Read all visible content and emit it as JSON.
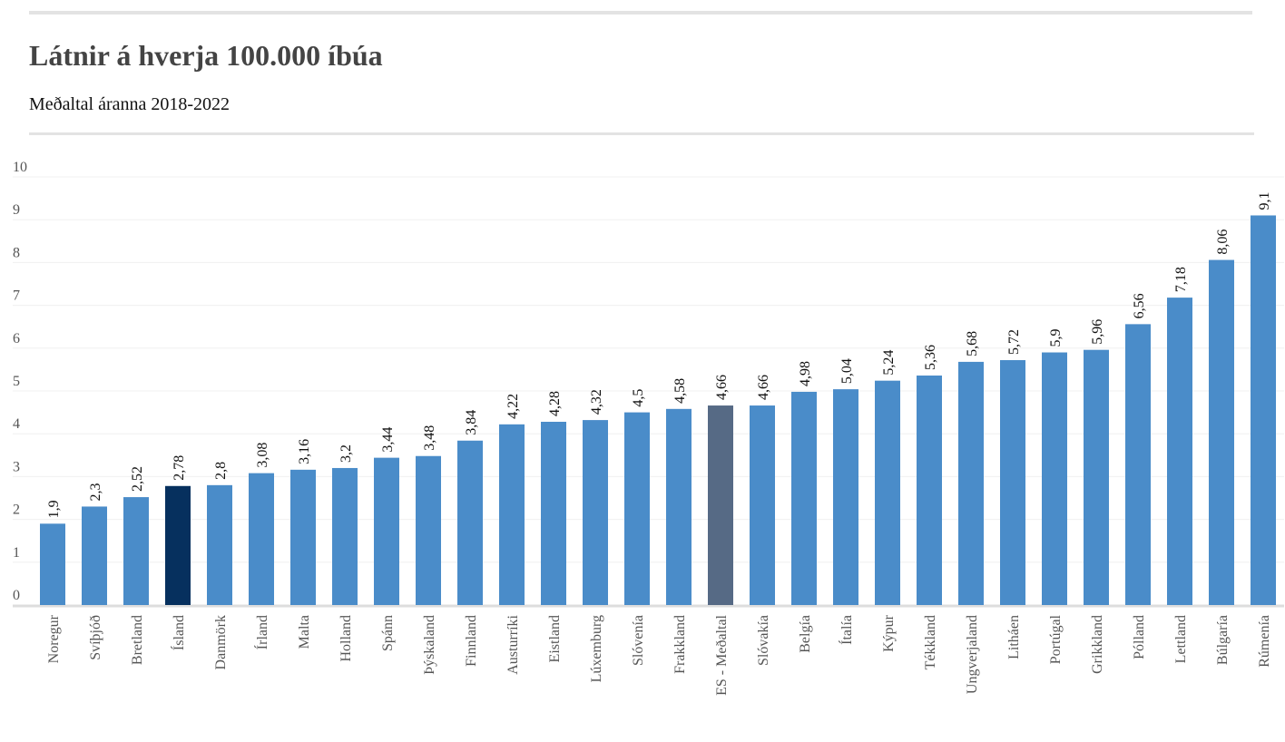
{
  "chart_data": {
    "type": "bar",
    "title": "Látnir á hverja 100.000 íbúa",
    "subtitle": "Meðaltal áranna 2018-2022",
    "categories": [
      "Noregur",
      "Svíþjóð",
      "Bretland",
      "Ísland",
      "Danmörk",
      "Írland",
      "Malta",
      "Holland",
      "Spánn",
      "Þýskaland",
      "Finnland",
      "Austurríki",
      "Eistland",
      "Lúxemburg",
      "Slóvenía",
      "Frakkland",
      "ES - Meðaltal",
      "Slóvakía",
      "Belgía",
      "Ítalía",
      "Kýpur",
      "Tékkland",
      "Ungverjaland",
      "Litháen",
      "Portúgal",
      "Grikkland",
      "Pólland",
      "Lettland",
      "Búlgaría",
      "Rúmenía"
    ],
    "values": [
      1.9,
      2.3,
      2.52,
      2.78,
      2.8,
      3.08,
      3.16,
      3.2,
      3.44,
      3.48,
      3.84,
      4.22,
      4.28,
      4.32,
      4.5,
      4.58,
      4.66,
      4.66,
      4.98,
      5.04,
      5.24,
      5.36,
      5.68,
      5.72,
      5.9,
      5.96,
      6.56,
      7.18,
      8.06,
      9.1
    ],
    "value_labels": [
      "1,9",
      "2,3",
      "2,52",
      "2,78",
      "2,8",
      "3,08",
      "3,16",
      "3,2",
      "3,44",
      "3,48",
      "3,84",
      "4,22",
      "4,28",
      "4,32",
      "4,5",
      "4,58",
      "4,66",
      "4,66",
      "4,98",
      "5,04",
      "5,24",
      "5,36",
      "5,68",
      "5,72",
      "5,9",
      "5,96",
      "6,56",
      "7,18",
      "8,06",
      "9,1"
    ],
    "colors": [
      "#4a8cc9",
      "#4a8cc9",
      "#4a8cc9",
      "#06305e",
      "#4a8cc9",
      "#4a8cc9",
      "#4a8cc9",
      "#4a8cc9",
      "#4a8cc9",
      "#4a8cc9",
      "#4a8cc9",
      "#4a8cc9",
      "#4a8cc9",
      "#4a8cc9",
      "#4a8cc9",
      "#4a8cc9",
      "#566a85",
      "#4a8cc9",
      "#4a8cc9",
      "#4a8cc9",
      "#4a8cc9",
      "#4a8cc9",
      "#4a8cc9",
      "#4a8cc9",
      "#4a8cc9",
      "#4a8cc9",
      "#4a8cc9",
      "#4a8cc9",
      "#4a8cc9",
      "#4a8cc9"
    ],
    "ylim": [
      0,
      10
    ],
    "yticks": [
      0,
      1,
      2,
      3,
      4,
      5,
      6,
      7,
      8,
      9,
      10
    ],
    "grid": true
  }
}
